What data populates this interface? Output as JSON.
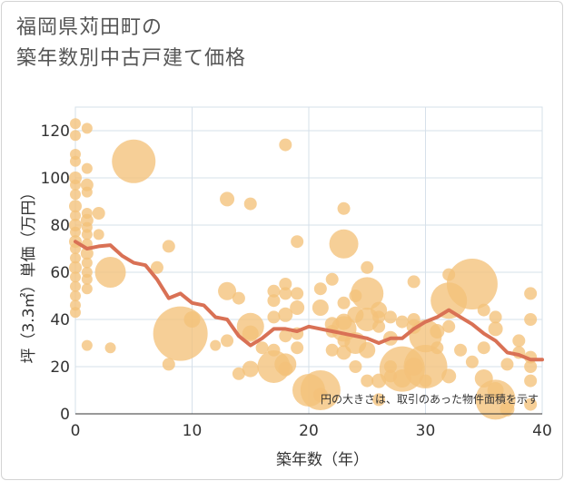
{
  "chart_data": {
    "type": "scatter",
    "title": [
      "福岡県苅田町の",
      "築年数別中古戸建て価格"
    ],
    "xlabel": "築年数（年）",
    "ylabel": "坪（3.3㎡）単価（万円）",
    "xlim": [
      0,
      40
    ],
    "ylim": [
      0,
      130
    ],
    "x_ticks": [
      0,
      10,
      20,
      30,
      40
    ],
    "y_ticks": [
      0,
      20,
      40,
      60,
      80,
      100,
      120
    ],
    "grid": true,
    "note": "円の大きさは、取引のあった物件面積を示す",
    "colors": {
      "bubble": "#f4c27a",
      "line": "#d97155",
      "grid": "#d6e0ea",
      "text": "#333333"
    },
    "series": [
      {
        "type": "bubble",
        "points": [
          {
            "x": 0,
            "y": 123,
            "s": 6
          },
          {
            "x": 0,
            "y": 118,
            "s": 6
          },
          {
            "x": 0,
            "y": 110,
            "s": 6
          },
          {
            "x": 0,
            "y": 107,
            "s": 6
          },
          {
            "x": 0,
            "y": 100,
            "s": 7
          },
          {
            "x": 0,
            "y": 97,
            "s": 6
          },
          {
            "x": 0,
            "y": 93,
            "s": 6
          },
          {
            "x": 0,
            "y": 88,
            "s": 7
          },
          {
            "x": 0,
            "y": 84,
            "s": 6
          },
          {
            "x": 0,
            "y": 80,
            "s": 7
          },
          {
            "x": 0,
            "y": 77,
            "s": 6
          },
          {
            "x": 0,
            "y": 73,
            "s": 7
          },
          {
            "x": 0,
            "y": 70,
            "s": 6
          },
          {
            "x": 0,
            "y": 66,
            "s": 6
          },
          {
            "x": 0,
            "y": 62,
            "s": 7
          },
          {
            "x": 0,
            "y": 58,
            "s": 6
          },
          {
            "x": 0,
            "y": 54,
            "s": 6
          },
          {
            "x": 0,
            "y": 50,
            "s": 6
          },
          {
            "x": 0,
            "y": 46,
            "s": 6
          },
          {
            "x": 0,
            "y": 43,
            "s": 6
          },
          {
            "x": 1,
            "y": 121,
            "s": 6
          },
          {
            "x": 1,
            "y": 104,
            "s": 6
          },
          {
            "x": 1,
            "y": 97,
            "s": 7
          },
          {
            "x": 1,
            "y": 94,
            "s": 6
          },
          {
            "x": 1,
            "y": 85,
            "s": 6
          },
          {
            "x": 1,
            "y": 82,
            "s": 7
          },
          {
            "x": 1,
            "y": 79,
            "s": 6
          },
          {
            "x": 1,
            "y": 76,
            "s": 6
          },
          {
            "x": 1,
            "y": 72,
            "s": 6
          },
          {
            "x": 1,
            "y": 68,
            "s": 7
          },
          {
            "x": 1,
            "y": 64,
            "s": 6
          },
          {
            "x": 1,
            "y": 60,
            "s": 6
          },
          {
            "x": 1,
            "y": 57,
            "s": 6
          },
          {
            "x": 1,
            "y": 53,
            "s": 6
          },
          {
            "x": 1,
            "y": 29,
            "s": 6
          },
          {
            "x": 2,
            "y": 85,
            "s": 7
          },
          {
            "x": 2,
            "y": 76,
            "s": 6
          },
          {
            "x": 3,
            "y": 60,
            "s": 17
          },
          {
            "x": 3,
            "y": 28,
            "s": 6
          },
          {
            "x": 5,
            "y": 107,
            "s": 24
          },
          {
            "x": 7,
            "y": 62,
            "s": 7
          },
          {
            "x": 8,
            "y": 71,
            "s": 7
          },
          {
            "x": 8,
            "y": 21,
            "s": 7
          },
          {
            "x": 9,
            "y": 34,
            "s": 30
          },
          {
            "x": 10,
            "y": 40,
            "s": 9
          },
          {
            "x": 12,
            "y": 29,
            "s": 6
          },
          {
            "x": 13,
            "y": 91,
            "s": 8
          },
          {
            "x": 13,
            "y": 52,
            "s": 10
          },
          {
            "x": 13,
            "y": 31,
            "s": 7
          },
          {
            "x": 14,
            "y": 49,
            "s": 7
          },
          {
            "x": 14,
            "y": 17,
            "s": 7
          },
          {
            "x": 15,
            "y": 89,
            "s": 7
          },
          {
            "x": 15,
            "y": 37,
            "s": 15
          },
          {
            "x": 15,
            "y": 34,
            "s": 9
          },
          {
            "x": 15,
            "y": 19,
            "s": 9
          },
          {
            "x": 16,
            "y": 28,
            "s": 7
          },
          {
            "x": 17,
            "y": 52,
            "s": 7
          },
          {
            "x": 17,
            "y": 48,
            "s": 7
          },
          {
            "x": 17,
            "y": 41,
            "s": 7
          },
          {
            "x": 17,
            "y": 27,
            "s": 7
          },
          {
            "x": 17,
            "y": 20,
            "s": 18
          },
          {
            "x": 18,
            "y": 114,
            "s": 7
          },
          {
            "x": 18,
            "y": 55,
            "s": 7
          },
          {
            "x": 18,
            "y": 51,
            "s": 7
          },
          {
            "x": 18,
            "y": 42,
            "s": 8
          },
          {
            "x": 18,
            "y": 33,
            "s": 7
          },
          {
            "x": 18,
            "y": 21,
            "s": 12
          },
          {
            "x": 18,
            "y": 19,
            "s": 8
          },
          {
            "x": 19,
            "y": 73,
            "s": 7
          },
          {
            "x": 19,
            "y": 51,
            "s": 7
          },
          {
            "x": 19,
            "y": 45,
            "s": 8
          },
          {
            "x": 19,
            "y": 34,
            "s": 7
          },
          {
            "x": 19,
            "y": 28,
            "s": 7
          },
          {
            "x": 20,
            "y": 10,
            "s": 18
          },
          {
            "x": 21,
            "y": 53,
            "s": 7
          },
          {
            "x": 21,
            "y": 45,
            "s": 9
          },
          {
            "x": 21,
            "y": 10,
            "s": 22
          },
          {
            "x": 21,
            "y": 8,
            "s": 8
          },
          {
            "x": 22,
            "y": 57,
            "s": 7
          },
          {
            "x": 22,
            "y": 38,
            "s": 8
          },
          {
            "x": 22,
            "y": 35,
            "s": 7
          },
          {
            "x": 22,
            "y": 27,
            "s": 7
          },
          {
            "x": 23,
            "y": 87,
            "s": 7
          },
          {
            "x": 23,
            "y": 72,
            "s": 16
          },
          {
            "x": 23,
            "y": 47,
            "s": 7
          },
          {
            "x": 23,
            "y": 39,
            "s": 9
          },
          {
            "x": 23,
            "y": 36,
            "s": 14
          },
          {
            "x": 23,
            "y": 31,
            "s": 7
          },
          {
            "x": 23,
            "y": 26,
            "s": 8
          },
          {
            "x": 24,
            "y": 50,
            "s": 7
          },
          {
            "x": 24,
            "y": 42,
            "s": 9
          },
          {
            "x": 24,
            "y": 30,
            "s": 12
          },
          {
            "x": 24,
            "y": 20,
            "s": 7
          },
          {
            "x": 25,
            "y": 62,
            "s": 7
          },
          {
            "x": 25,
            "y": 51,
            "s": 18
          },
          {
            "x": 25,
            "y": 40,
            "s": 13
          },
          {
            "x": 25,
            "y": 27,
            "s": 9
          },
          {
            "x": 25,
            "y": 14,
            "s": 7
          },
          {
            "x": 26,
            "y": 44,
            "s": 9
          },
          {
            "x": 26,
            "y": 41,
            "s": 7
          },
          {
            "x": 26,
            "y": 37,
            "s": 7
          },
          {
            "x": 26,
            "y": 14,
            "s": 8
          },
          {
            "x": 26,
            "y": 6,
            "s": 7
          },
          {
            "x": 27,
            "y": 41,
            "s": 7
          },
          {
            "x": 27,
            "y": 32,
            "s": 8
          },
          {
            "x": 27,
            "y": 20,
            "s": 7
          },
          {
            "x": 27,
            "y": 16,
            "s": 7
          },
          {
            "x": 28,
            "y": 39,
            "s": 7
          },
          {
            "x": 28,
            "y": 19,
            "s": 25
          },
          {
            "x": 28,
            "y": 15,
            "s": 10
          },
          {
            "x": 29,
            "y": 56,
            "s": 7
          },
          {
            "x": 29,
            "y": 40,
            "s": 7
          },
          {
            "x": 29,
            "y": 37,
            "s": 8
          },
          {
            "x": 29,
            "y": 20,
            "s": 10
          },
          {
            "x": 30,
            "y": 33,
            "s": 18
          },
          {
            "x": 30,
            "y": 20,
            "s": 24
          },
          {
            "x": 30,
            "y": 14,
            "s": 7
          },
          {
            "x": 31,
            "y": 35,
            "s": 8
          },
          {
            "x": 31,
            "y": 28,
            "s": 7
          },
          {
            "x": 32,
            "y": 59,
            "s": 7
          },
          {
            "x": 32,
            "y": 48,
            "s": 20
          },
          {
            "x": 32,
            "y": 37,
            "s": 7
          },
          {
            "x": 32,
            "y": 16,
            "s": 8
          },
          {
            "x": 33,
            "y": 27,
            "s": 7
          },
          {
            "x": 34,
            "y": 55,
            "s": 28
          },
          {
            "x": 34,
            "y": 22,
            "s": 7
          },
          {
            "x": 35,
            "y": 44,
            "s": 7
          },
          {
            "x": 35,
            "y": 28,
            "s": 7
          },
          {
            "x": 35,
            "y": 15,
            "s": 10
          },
          {
            "x": 36,
            "y": 10,
            "s": 9
          },
          {
            "x": 36,
            "y": 6,
            "s": 22
          },
          {
            "x": 36,
            "y": 41,
            "s": 7
          },
          {
            "x": 36,
            "y": 36,
            "s": 8
          },
          {
            "x": 37,
            "y": 21,
            "s": 7
          },
          {
            "x": 37,
            "y": 2,
            "s": 8
          },
          {
            "x": 38,
            "y": 31,
            "s": 7
          },
          {
            "x": 38,
            "y": 26,
            "s": 7
          },
          {
            "x": 39,
            "y": 51,
            "s": 7
          },
          {
            "x": 39,
            "y": 40,
            "s": 7
          },
          {
            "x": 39,
            "y": 24,
            "s": 7
          },
          {
            "x": 39,
            "y": 20,
            "s": 7
          },
          {
            "x": 39,
            "y": 14,
            "s": 7
          },
          {
            "x": 39,
            "y": 4,
            "s": 7
          }
        ]
      },
      {
        "type": "line",
        "points": [
          {
            "x": 0,
            "y": 73
          },
          {
            "x": 1,
            "y": 70
          },
          {
            "x": 2,
            "y": 71
          },
          {
            "x": 3,
            "y": 71.5
          },
          {
            "x": 4,
            "y": 67
          },
          {
            "x": 5,
            "y": 64
          },
          {
            "x": 6,
            "y": 63
          },
          {
            "x": 7,
            "y": 57
          },
          {
            "x": 8,
            "y": 49
          },
          {
            "x": 9,
            "y": 51
          },
          {
            "x": 10,
            "y": 47
          },
          {
            "x": 11,
            "y": 46
          },
          {
            "x": 12,
            "y": 41
          },
          {
            "x": 13,
            "y": 40
          },
          {
            "x": 14,
            "y": 33
          },
          {
            "x": 15,
            "y": 29
          },
          {
            "x": 16,
            "y": 32
          },
          {
            "x": 17,
            "y": 36
          },
          {
            "x": 18,
            "y": 36
          },
          {
            "x": 19,
            "y": 35
          },
          {
            "x": 20,
            "y": 37
          },
          {
            "x": 21,
            "y": 36
          },
          {
            "x": 22,
            "y": 35
          },
          {
            "x": 23,
            "y": 34
          },
          {
            "x": 24,
            "y": 33
          },
          {
            "x": 25,
            "y": 32
          },
          {
            "x": 26,
            "y": 30
          },
          {
            "x": 27,
            "y": 32
          },
          {
            "x": 28,
            "y": 32
          },
          {
            "x": 29,
            "y": 36
          },
          {
            "x": 30,
            "y": 39
          },
          {
            "x": 31,
            "y": 41
          },
          {
            "x": 32,
            "y": 44
          },
          {
            "x": 33,
            "y": 41
          },
          {
            "x": 34,
            "y": 38
          },
          {
            "x": 35,
            "y": 34
          },
          {
            "x": 36,
            "y": 31
          },
          {
            "x": 37,
            "y": 26
          },
          {
            "x": 38,
            "y": 25
          },
          {
            "x": 39,
            "y": 23
          },
          {
            "x": 40,
            "y": 23
          }
        ]
      }
    ]
  }
}
